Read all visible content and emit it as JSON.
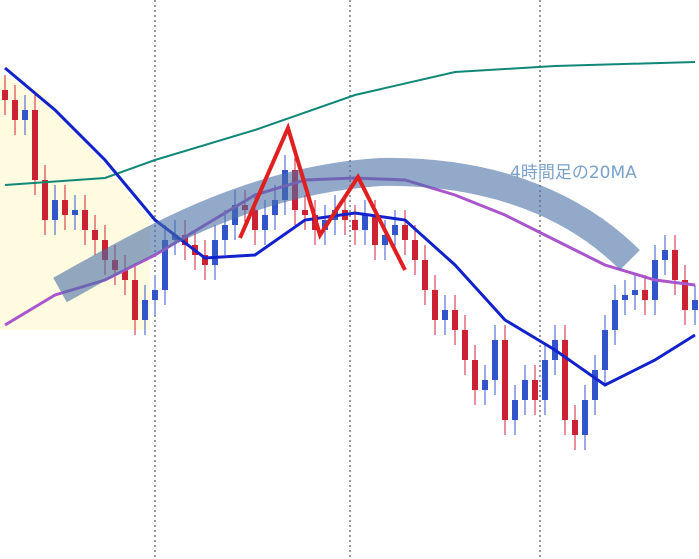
{
  "chart_data": {
    "type": "candlestick",
    "annotation": "4時間足の20MA",
    "ylim": [
      0,
      559
    ],
    "open": [
      469,
      459,
      439,
      449,
      379,
      339,
      359,
      344,
      349,
      329,
      319,
      299,
      289,
      279,
      239,
      259,
      269,
      319,
      324,
      314,
      304,
      294,
      319,
      334,
      354,
      349,
      329,
      344,
      359,
      389,
      349,
      344,
      329,
      339,
      349,
      339,
      329,
      344,
      314,
      324,
      334,
      319,
      299,
      269,
      239,
      249,
      229,
      199,
      169,
      179,
      219,
      139,
      159,
      179,
      159,
      199,
      219,
      139,
      124,
      159,
      189,
      229,
      259,
      264,
      269,
      259,
      299,
      309,
      279,
      249
    ],
    "high": [
      484,
      474,
      464,
      464,
      394,
      374,
      374,
      364,
      364,
      344,
      334,
      314,
      304,
      294,
      274,
      284,
      334,
      339,
      339,
      329,
      319,
      334,
      349,
      369,
      369,
      364,
      359,
      374,
      404,
      404,
      364,
      359,
      354,
      364,
      364,
      354,
      359,
      359,
      339,
      349,
      349,
      334,
      314,
      284,
      264,
      264,
      244,
      214,
      194,
      234,
      234,
      174,
      194,
      194,
      214,
      234,
      234,
      154,
      174,
      204,
      244,
      274,
      279,
      284,
      284,
      314,
      324,
      324,
      294,
      274
    ],
    "low": [
      444,
      424,
      424,
      364,
      324,
      324,
      329,
      329,
      314,
      304,
      284,
      274,
      264,
      224,
      224,
      244,
      254,
      304,
      299,
      289,
      279,
      279,
      304,
      319,
      334,
      314,
      314,
      329,
      344,
      334,
      329,
      314,
      314,
      324,
      324,
      314,
      314,
      299,
      299,
      309,
      304,
      284,
      254,
      224,
      224,
      214,
      184,
      154,
      154,
      164,
      124,
      124,
      144,
      144,
      144,
      184,
      124,
      109,
      109,
      144,
      174,
      214,
      244,
      249,
      244,
      244,
      284,
      264,
      234,
      234
    ],
    "close": [
      459,
      439,
      449,
      379,
      339,
      359,
      344,
      349,
      329,
      319,
      299,
      289,
      279,
      239,
      259,
      269,
      319,
      324,
      314,
      304,
      294,
      319,
      334,
      354,
      349,
      329,
      344,
      359,
      389,
      349,
      344,
      329,
      339,
      349,
      339,
      329,
      344,
      314,
      324,
      334,
      319,
      299,
      269,
      239,
      249,
      229,
      199,
      169,
      179,
      219,
      139,
      159,
      179,
      159,
      199,
      219,
      139,
      124,
      159,
      189,
      229,
      259,
      264,
      269,
      259,
      299,
      309,
      279,
      249,
      259
    ],
    "up_color": "#3355cc",
    "down_color": "#cc2233",
    "lines": [
      {
        "color": "#118877",
        "width": 2,
        "x": [
          0,
          10,
          15,
          25,
          35,
          45,
          55,
          69
        ],
        "values": [
          374,
          381,
          399,
          429,
          464,
          487,
          493,
          497
        ]
      },
      {
        "color": "#aa55cc",
        "width": 3,
        "x": [
          0,
          5,
          10,
          15,
          20,
          25,
          30,
          35,
          40,
          45,
          50,
          55,
          60,
          65,
          69
        ],
        "values": [
          234,
          264,
          279,
          304,
          334,
          364,
          379,
          381,
          379,
          364,
          344,
          319,
          294,
          279,
          274
        ]
      },
      {
        "color": "#1122cc",
        "width": 3,
        "x": [
          0,
          5,
          10,
          15,
          20,
          25,
          30,
          35,
          40,
          45,
          50,
          55,
          60,
          65,
          69
        ],
        "values": [
          491,
          449,
          399,
          339,
          301,
          304,
          339,
          346,
          339,
          294,
          239,
          209,
          174,
          199,
          224
        ]
      }
    ]
  }
}
